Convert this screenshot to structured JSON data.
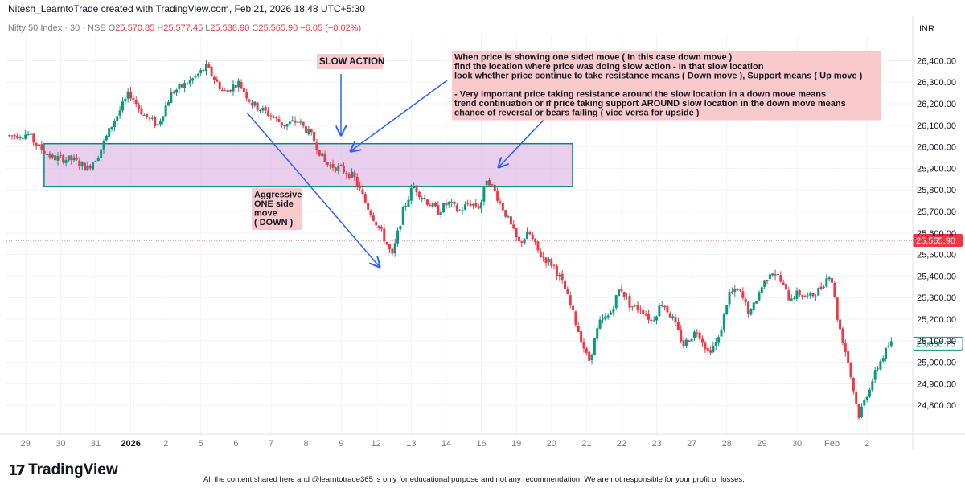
{
  "header": {
    "credit": "Nitesh_LearntoTrade created with TradingView.com, Feb 21, 2026 18:48 UTC+5:30"
  },
  "legend": {
    "symbol": "Nifty 50 Index · 30 · NSE",
    "open_label": "O",
    "open": "25,570.85",
    "high_label": "H",
    "high": "25,577.45",
    "low_label": "L",
    "low": "25,538.90",
    "close_label": "C",
    "close": "25,565.90",
    "change": "−6.05 (−0.02%)"
  },
  "footer": {
    "logo_text": "TradingView",
    "logo_mark": "17",
    "disclaimer": "All the content shared here and @learntotrade365 is only for educational purpose and not any recommendation. We are not responsible for your profit or losses."
  },
  "colors": {
    "up": "#089981",
    "down": "#f23645",
    "zone_fill": "#e1bee7",
    "zone_border": "#00897b",
    "arrow": "#2962ff",
    "note_bg": "#f9c9cc",
    "price_line": "#f23645",
    "badge_last": "#f23645",
    "badge_ref": "#089981"
  },
  "chart_data": {
    "type": "candlestick",
    "currency": "INR",
    "ylim": [
      24700,
      26480
    ],
    "yticks": [
      24800,
      24900,
      25000,
      25100,
      25200,
      25300,
      25400,
      25500,
      25600,
      25700,
      25800,
      25900,
      26000,
      26100,
      26200,
      26300,
      26400
    ],
    "ytick_labels": [
      "24,800.00",
      "24,900.00",
      "25,000.00",
      "25,100.00",
      "25,200.00",
      "25,300.00",
      "25,400.00",
      "25,500.00",
      "25,600.00",
      "25,700.00",
      "25,800.00",
      "25,900.00",
      "26,000.00",
      "26,100.00",
      "26,200.00",
      "26,300.00",
      "26,400.00"
    ],
    "xlabels": [
      {
        "label": "29",
        "session": 0.5,
        "bold": false
      },
      {
        "label": "30",
        "session": 1.5,
        "bold": false
      },
      {
        "label": "31",
        "session": 2.5,
        "bold": false
      },
      {
        "label": "2026",
        "session": 3.5,
        "bold": true
      },
      {
        "label": "2",
        "session": 4.5,
        "bold": false
      },
      {
        "label": "5",
        "session": 5.5,
        "bold": false
      },
      {
        "label": "6",
        "session": 6.5,
        "bold": false
      },
      {
        "label": "7",
        "session": 7.5,
        "bold": false
      },
      {
        "label": "8",
        "session": 8.5,
        "bold": false
      },
      {
        "label": "9",
        "session": 9.5,
        "bold": false
      },
      {
        "label": "12",
        "session": 10.5,
        "bold": false
      },
      {
        "label": "13",
        "session": 11.5,
        "bold": false
      },
      {
        "label": "14",
        "session": 12.5,
        "bold": false
      },
      {
        "label": "16",
        "session": 13.5,
        "bold": false
      },
      {
        "label": "19",
        "session": 14.5,
        "bold": false
      },
      {
        "label": "20",
        "session": 15.5,
        "bold": false
      },
      {
        "label": "21",
        "session": 16.5,
        "bold": false
      },
      {
        "label": "22",
        "session": 17.5,
        "bold": false
      },
      {
        "label": "23",
        "session": 18.5,
        "bold": false
      },
      {
        "label": "27",
        "session": 19.5,
        "bold": false
      },
      {
        "label": "28",
        "session": 20.5,
        "bold": false
      },
      {
        "label": "29",
        "session": 21.5,
        "bold": false
      },
      {
        "label": "30",
        "session": 22.5,
        "bold": false
      },
      {
        "label": "Feb",
        "session": 23.5,
        "bold": false
      },
      {
        "label": "2",
        "session": 24.5,
        "bold": false
      }
    ],
    "sessions": 25.3,
    "path_knots": [
      [
        0.0,
        26050
      ],
      [
        0.6,
        26060
      ],
      [
        0.9,
        26000
      ],
      [
        1.3,
        25950
      ],
      [
        1.9,
        25940
      ],
      [
        2.3,
        25900
      ],
      [
        2.6,
        25960
      ],
      [
        3.0,
        26100
      ],
      [
        3.5,
        26250
      ],
      [
        3.9,
        26150
      ],
      [
        4.3,
        26100
      ],
      [
        4.7,
        26250
      ],
      [
        5.2,
        26300
      ],
      [
        5.7,
        26370
      ],
      [
        6.2,
        26250
      ],
      [
        6.6,
        26300
      ],
      [
        7.0,
        26200
      ],
      [
        7.5,
        26150
      ],
      [
        7.9,
        26100
      ],
      [
        8.3,
        26120
      ],
      [
        8.7,
        26050
      ],
      [
        9.1,
        25920
      ],
      [
        9.5,
        25900
      ],
      [
        9.9,
        25860
      ],
      [
        10.3,
        25720
      ],
      [
        10.7,
        25600
      ],
      [
        11.0,
        25490
      ],
      [
        11.3,
        25700
      ],
      [
        11.6,
        25820
      ],
      [
        11.9,
        25760
      ],
      [
        12.3,
        25700
      ],
      [
        12.6,
        25740
      ],
      [
        12.9,
        25700
      ],
      [
        13.2,
        25740
      ],
      [
        13.5,
        25720
      ],
      [
        13.7,
        25860
      ],
      [
        13.9,
        25800
      ],
      [
        14.2,
        25700
      ],
      [
        14.6,
        25550
      ],
      [
        14.9,
        25600
      ],
      [
        15.2,
        25500
      ],
      [
        15.6,
        25450
      ],
      [
        15.9,
        25350
      ],
      [
        16.3,
        25150
      ],
      [
        16.6,
        25000
      ],
      [
        16.9,
        25180
      ],
      [
        17.2,
        25220
      ],
      [
        17.5,
        25350
      ],
      [
        17.8,
        25260
      ],
      [
        18.1,
        25250
      ],
      [
        18.4,
        25190
      ],
      [
        18.7,
        25280
      ],
      [
        19.0,
        25200
      ],
      [
        19.3,
        25080
      ],
      [
        19.7,
        25150
      ],
      [
        20.0,
        25050
      ],
      [
        20.3,
        25100
      ],
      [
        20.6,
        25320
      ],
      [
        20.9,
        25330
      ],
      [
        21.2,
        25220
      ],
      [
        21.5,
        25340
      ],
      [
        21.8,
        25430
      ],
      [
        22.0,
        25400
      ],
      [
        22.3,
        25300
      ],
      [
        22.6,
        25320
      ],
      [
        22.9,
        25300
      ],
      [
        23.2,
        25340
      ],
      [
        23.5,
        25420
      ],
      [
        23.7,
        25200
      ],
      [
        24.0,
        25000
      ],
      [
        24.3,
        24750
      ],
      [
        24.6,
        24880
      ],
      [
        24.9,
        25000
      ],
      [
        25.2,
        25087
      ]
    ],
    "last_price": 25565.9,
    "last_price_label": "25,565.90",
    "ref_price": 25086.75,
    "ref_price_label": "25,086.75",
    "zone": {
      "session_start": 0.8,
      "session_end": 16.1,
      "price_low": 25850,
      "price_high": 25955
    },
    "annotations": [
      {
        "id": "slow-action",
        "text": "SLOW ACTION"
      },
      {
        "id": "aggressive",
        "lines": [
          "Aggressive",
          "ONE side",
          "move",
          "( DOWN )"
        ]
      },
      {
        "id": "note",
        "lines": [
          "When price is showing one sided move ( In this case down move )",
          "find the location where price was doing slow action - In that slow location",
          "look whether price continue to take resistance means ( Down move ), Support means ( Up move )",
          "",
          "- Very important price taking resistance around the slow location in a down move means",
          "trend continuation or if price taking support AROUND slow location in the down move means",
          "chance of reversal or bears failing ( vice versa for upside )"
        ]
      }
    ]
  }
}
